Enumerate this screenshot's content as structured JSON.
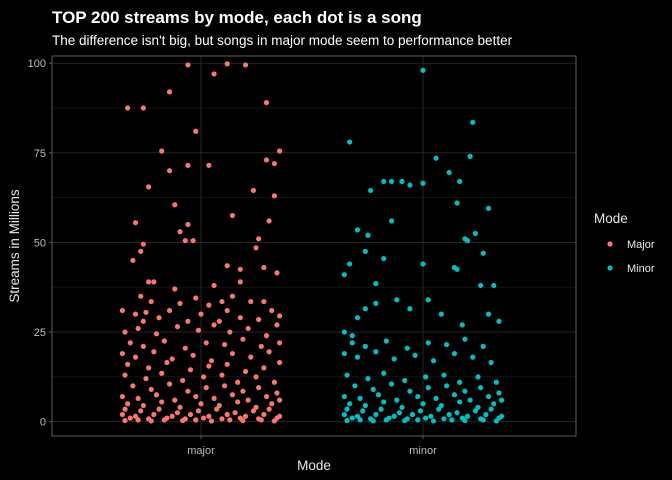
{
  "chart_data": {
    "type": "scatter",
    "title": "TOP 200 streams by mode, each dot is a song",
    "subtitle": "The difference isn't big, but songs in major mode seem to performance better",
    "xlabel": "Mode",
    "ylabel": "Streams in Millions",
    "categories": [
      "major",
      "minor"
    ],
    "ylim": [
      -4,
      102
    ],
    "yticks": [
      0,
      25,
      50,
      75,
      100
    ],
    "grid": true,
    "legend": {
      "title": "Mode",
      "position": "right",
      "entries": [
        "Major",
        "Minor"
      ]
    },
    "colors": {
      "Major": "#F8766D",
      "Minor": "#00BFC4",
      "background": "#000000",
      "grid": "#2b2b2b",
      "panel_border": "#666666"
    },
    "series": [
      {
        "name": "Major",
        "category": "major",
        "values": [
          [
            -0.28,
            87.5
          ],
          [
            -0.22,
            87.5
          ],
          [
            -0.12,
            92
          ],
          [
            -0.05,
            99.5
          ],
          [
            0.05,
            97
          ],
          [
            0.1,
            99.8
          ],
          [
            0.17,
            99.5
          ],
          [
            0.25,
            89
          ],
          [
            -0.15,
            75.5
          ],
          [
            -0.05,
            71.5
          ],
          [
            0.03,
            71.5
          ],
          [
            0.3,
            75.5
          ],
          [
            0.25,
            73
          ],
          [
            0.28,
            72
          ],
          [
            -0.2,
            65.5
          ],
          [
            -0.12,
            70
          ],
          [
            -0.02,
            81
          ],
          [
            0.2,
            64.5
          ],
          [
            0.28,
            63
          ],
          [
            -0.25,
            55.5
          ],
          [
            -0.1,
            60.5
          ],
          [
            -0.05,
            55
          ],
          [
            0.12,
            57.5
          ],
          [
            0.26,
            56
          ],
          [
            0.22,
            51
          ],
          [
            -0.23,
            47.5
          ],
          [
            -0.22,
            49.5
          ],
          [
            -0.26,
            45
          ],
          [
            -0.08,
            53
          ],
          [
            -0.06,
            50.5
          ],
          [
            -0.03,
            50.5
          ],
          [
            0.21,
            48.5
          ],
          [
            0.24,
            43
          ],
          [
            0.29,
            41.5
          ],
          [
            0.15,
            42.5
          ],
          [
            0.1,
            43.5
          ],
          [
            -0.2,
            39
          ],
          [
            -0.18,
            39
          ],
          [
            -0.1,
            37
          ],
          [
            0.05,
            38
          ],
          [
            0.15,
            39
          ],
          [
            -0.23,
            35
          ],
          [
            -0.19,
            33.5
          ],
          [
            -0.02,
            34.5
          ],
          [
            0.12,
            35
          ],
          [
            -0.08,
            33
          ],
          [
            0.03,
            32.5
          ],
          [
            0.08,
            33.5
          ],
          [
            0.19,
            33.5
          ],
          [
            0.24,
            33.5
          ],
          [
            0.27,
            31
          ],
          [
            -0.3,
            31
          ],
          [
            -0.25,
            30
          ],
          [
            -0.21,
            30.5
          ],
          [
            -0.22,
            28
          ],
          [
            -0.16,
            29
          ],
          [
            -0.12,
            31
          ],
          [
            -0.05,
            28
          ],
          [
            0.0,
            30
          ],
          [
            0.07,
            28
          ],
          [
            0.1,
            31
          ],
          [
            0.15,
            29
          ],
          [
            0.22,
            28.5
          ],
          [
            0.3,
            29.5
          ],
          [
            -0.29,
            25
          ],
          [
            -0.24,
            26
          ],
          [
            -0.17,
            24.5
          ],
          [
            -0.09,
            26.5
          ],
          [
            -0.01,
            25.5
          ],
          [
            0.05,
            27
          ],
          [
            0.11,
            25
          ],
          [
            0.18,
            26
          ],
          [
            0.25,
            24
          ],
          [
            0.29,
            27
          ],
          [
            -0.27,
            22
          ],
          [
            -0.22,
            21
          ],
          [
            -0.14,
            22.5
          ],
          [
            -0.06,
            20.5
          ],
          [
            0.02,
            22
          ],
          [
            0.09,
            21.5
          ],
          [
            0.16,
            23
          ],
          [
            0.23,
            21
          ],
          [
            0.3,
            22
          ],
          [
            -0.3,
            19
          ],
          [
            -0.25,
            18
          ],
          [
            -0.18,
            19.5
          ],
          [
            -0.11,
            17.5
          ],
          [
            -0.03,
            18.5
          ],
          [
            0.04,
            17
          ],
          [
            0.12,
            19
          ],
          [
            0.19,
            18
          ],
          [
            0.26,
            19.5
          ],
          [
            -0.28,
            16
          ],
          [
            -0.2,
            15
          ],
          [
            -0.13,
            16.5
          ],
          [
            -0.04,
            14.5
          ],
          [
            0.03,
            15.5
          ],
          [
            0.1,
            16
          ],
          [
            0.17,
            14
          ],
          [
            0.24,
            15
          ],
          [
            0.3,
            16.5
          ],
          [
            -0.29,
            13
          ],
          [
            -0.21,
            12
          ],
          [
            -0.15,
            13.5
          ],
          [
            -0.07,
            11.5
          ],
          [
            0.01,
            12.5
          ],
          [
            0.08,
            13
          ],
          [
            0.14,
            11
          ],
          [
            0.21,
            12.5
          ],
          [
            0.28,
            11
          ],
          [
            -0.26,
            10
          ],
          [
            -0.19,
            9
          ],
          [
            -0.12,
            10.5
          ],
          [
            -0.05,
            8.5
          ],
          [
            0.02,
            9.5
          ],
          [
            0.09,
            10
          ],
          [
            0.16,
            8.5
          ],
          [
            0.22,
            9.5
          ],
          [
            0.29,
            8
          ],
          [
            -0.3,
            7
          ],
          [
            -0.24,
            6.5
          ],
          [
            -0.17,
            7.5
          ],
          [
            -0.1,
            6
          ],
          [
            -0.02,
            7
          ],
          [
            0.05,
            6.5
          ],
          [
            0.12,
            7.5
          ],
          [
            0.18,
            6
          ],
          [
            0.25,
            7
          ],
          [
            0.3,
            6
          ],
          [
            -0.28,
            5
          ],
          [
            -0.22,
            4.5
          ],
          [
            -0.15,
            5.5
          ],
          [
            -0.08,
            4
          ],
          [
            0.0,
            5
          ],
          [
            0.07,
            4.5
          ],
          [
            0.14,
            5.5
          ],
          [
            0.21,
            4
          ],
          [
            0.27,
            5
          ],
          [
            -0.29,
            3.5
          ],
          [
            -0.23,
            3
          ],
          [
            -0.16,
            3.5
          ],
          [
            -0.09,
            2.5
          ],
          [
            -0.01,
            3
          ],
          [
            0.06,
            3.5
          ],
          [
            0.13,
            2.5
          ],
          [
            0.2,
            3
          ],
          [
            0.26,
            3.5
          ],
          [
            -0.3,
            2
          ],
          [
            -0.25,
            1.5
          ],
          [
            -0.18,
            2
          ],
          [
            -0.11,
            1.5
          ],
          [
            -0.04,
            2
          ],
          [
            0.03,
            1.5
          ],
          [
            0.1,
            2
          ],
          [
            0.17,
            1.5
          ],
          [
            0.24,
            2
          ],
          [
            0.3,
            1.5
          ],
          [
            -0.27,
            1
          ],
          [
            -0.2,
            0.8
          ],
          [
            -0.13,
            1
          ],
          [
            -0.06,
            0.8
          ],
          [
            0.01,
            1
          ],
          [
            0.08,
            0.8
          ],
          [
            0.15,
            1
          ],
          [
            0.22,
            0.8
          ],
          [
            0.29,
            1
          ],
          [
            -0.29,
            0.3
          ],
          [
            -0.24,
            0.5
          ],
          [
            -0.19,
            0.2
          ],
          [
            -0.14,
            0.5
          ],
          [
            -0.07,
            0.3
          ],
          [
            -0.02,
            0.5
          ],
          [
            0.04,
            0.2
          ],
          [
            0.11,
            0.5
          ],
          [
            0.16,
            0.3
          ],
          [
            0.23,
            0.5
          ],
          [
            0.28,
            0.2
          ]
        ]
      },
      {
        "name": "Minor",
        "category": "minor",
        "values": [
          [
            0.0,
            98
          ],
          [
            -0.28,
            78
          ],
          [
            0.19,
            83.5
          ],
          [
            0.18,
            74
          ],
          [
            0.05,
            73.5
          ],
          [
            0.1,
            69.5
          ],
          [
            0.13,
            61
          ],
          [
            -0.15,
            67
          ],
          [
            -0.12,
            67
          ],
          [
            -0.08,
            67
          ],
          [
            -0.2,
            64.5
          ],
          [
            -0.05,
            66
          ],
          [
            0.0,
            66.5
          ],
          [
            0.14,
            67
          ],
          [
            0.25,
            59.5
          ],
          [
            -0.25,
            53.5
          ],
          [
            -0.21,
            52
          ],
          [
            -0.22,
            47.5
          ],
          [
            -0.12,
            56
          ],
          [
            -0.15,
            45.5
          ],
          [
            0.16,
            51
          ],
          [
            0.17,
            50.5
          ],
          [
            0.23,
            47
          ],
          [
            0.2,
            52.5
          ],
          [
            -0.28,
            44
          ],
          [
            -0.3,
            41
          ],
          [
            -0.18,
            38.5
          ],
          [
            0.0,
            44
          ],
          [
            0.12,
            43
          ],
          [
            0.13,
            42.5
          ],
          [
            0.22,
            38
          ],
          [
            0.27,
            38
          ],
          [
            -0.3,
            25
          ],
          [
            -0.27,
            24
          ],
          [
            -0.25,
            29
          ],
          [
            -0.22,
            31.5
          ],
          [
            -0.18,
            33
          ],
          [
            -0.1,
            34
          ],
          [
            -0.05,
            31.5
          ],
          [
            0.02,
            34
          ],
          [
            0.07,
            30
          ],
          [
            0.15,
            27
          ],
          [
            0.25,
            30
          ],
          [
            0.29,
            28
          ],
          [
            -0.27,
            22
          ],
          [
            -0.22,
            21
          ],
          [
            -0.14,
            22.5
          ],
          [
            -0.06,
            20.5
          ],
          [
            0.02,
            22
          ],
          [
            0.09,
            21.5
          ],
          [
            0.16,
            23
          ],
          [
            0.23,
            21
          ],
          [
            -0.3,
            19
          ],
          [
            -0.25,
            18
          ],
          [
            -0.18,
            19.5
          ],
          [
            -0.11,
            17.5
          ],
          [
            -0.03,
            18.5
          ],
          [
            0.04,
            17
          ],
          [
            0.12,
            19
          ],
          [
            0.19,
            18
          ],
          [
            0.26,
            16.5
          ],
          [
            -0.29,
            13
          ],
          [
            -0.21,
            12
          ],
          [
            -0.15,
            13.5
          ],
          [
            -0.07,
            11.5
          ],
          [
            0.01,
            12.5
          ],
          [
            0.08,
            13
          ],
          [
            0.14,
            11
          ],
          [
            0.21,
            12.5
          ],
          [
            0.28,
            11
          ],
          [
            -0.26,
            10
          ],
          [
            -0.19,
            9
          ],
          [
            -0.12,
            10.5
          ],
          [
            -0.05,
            8.5
          ],
          [
            0.02,
            9.5
          ],
          [
            0.09,
            10
          ],
          [
            0.16,
            8.5
          ],
          [
            0.22,
            9.5
          ],
          [
            0.29,
            8
          ],
          [
            -0.3,
            7
          ],
          [
            -0.24,
            6.5
          ],
          [
            -0.17,
            7.5
          ],
          [
            -0.1,
            6
          ],
          [
            -0.02,
            7
          ],
          [
            0.05,
            6.5
          ],
          [
            0.12,
            7.5
          ],
          [
            0.18,
            6
          ],
          [
            0.25,
            7
          ],
          [
            0.3,
            6
          ],
          [
            -0.28,
            5
          ],
          [
            -0.22,
            4.5
          ],
          [
            -0.15,
            5.5
          ],
          [
            -0.08,
            4
          ],
          [
            0.0,
            5
          ],
          [
            0.07,
            4.5
          ],
          [
            0.14,
            5.5
          ],
          [
            0.21,
            4
          ],
          [
            0.27,
            5
          ],
          [
            -0.29,
            3.5
          ],
          [
            -0.23,
            3
          ],
          [
            -0.16,
            3.5
          ],
          [
            -0.09,
            2.5
          ],
          [
            -0.01,
            3
          ],
          [
            0.06,
            3.5
          ],
          [
            0.13,
            2.5
          ],
          [
            0.2,
            3
          ],
          [
            0.26,
            3.5
          ],
          [
            -0.3,
            2
          ],
          [
            -0.25,
            1.5
          ],
          [
            -0.18,
            2
          ],
          [
            -0.11,
            1.5
          ],
          [
            -0.04,
            2
          ],
          [
            0.03,
            1.5
          ],
          [
            0.1,
            2
          ],
          [
            0.17,
            1.5
          ],
          [
            0.24,
            2
          ],
          [
            0.3,
            1.5
          ],
          [
            -0.27,
            1
          ],
          [
            -0.2,
            0.8
          ],
          [
            -0.13,
            1
          ],
          [
            -0.06,
            0.8
          ],
          [
            0.01,
            1
          ],
          [
            0.08,
            0.8
          ],
          [
            0.15,
            1
          ],
          [
            0.22,
            0.8
          ],
          [
            0.29,
            1
          ],
          [
            -0.29,
            0.3
          ],
          [
            -0.24,
            0.5
          ],
          [
            -0.19,
            0.2
          ],
          [
            -0.14,
            0.5
          ],
          [
            -0.07,
            0.3
          ],
          [
            -0.02,
            0.5
          ],
          [
            0.04,
            0.2
          ],
          [
            0.11,
            0.5
          ],
          [
            0.16,
            0.3
          ],
          [
            0.23,
            0.5
          ],
          [
            0.28,
            0.2
          ]
        ]
      }
    ]
  }
}
